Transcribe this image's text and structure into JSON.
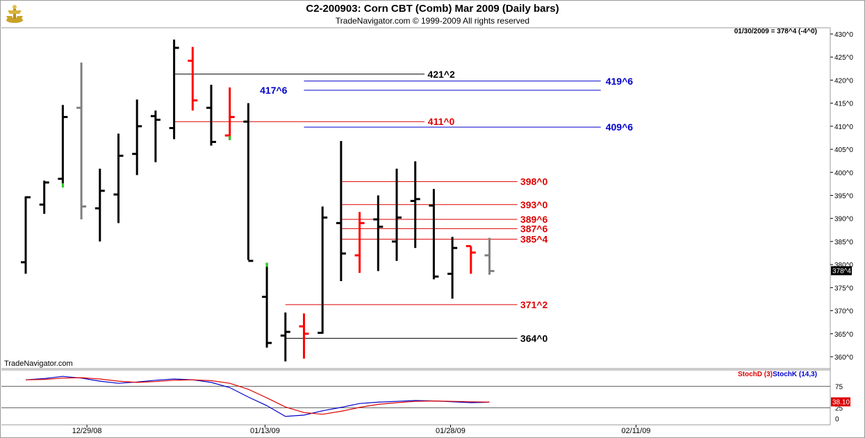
{
  "header": {
    "title": "C2-200903:  Corn CBT (Comb) Mar 2009  (Daily bars)",
    "subtitle": "TradeNavigator.com © 1999-2009 All rights reserved"
  },
  "quote": "01/30/2009 = 378^4 (-4^0)",
  "last_price_label": "378^4",
  "watermark": "TradeNavigator.com",
  "colors": {
    "up": "#000000",
    "down": "#ff0000",
    "gray": "#808080",
    "green": "#22cc22",
    "blue": "#0000cc",
    "red": "#dd0000"
  },
  "chart_data": [
    {
      "type": "ohlc",
      "title": "Corn CBT (Comb) Mar 2009",
      "y_axis": {
        "min": 357,
        "max": 431,
        "ticks": [
          "430^0",
          "425^0",
          "420^0",
          "415^0",
          "410^0",
          "405^0",
          "400^0",
          "395^0",
          "390^0",
          "385^0",
          "380^0",
          "375^0",
          "370^0",
          "365^0",
          "360^0"
        ]
      },
      "x_labels": [
        {
          "label": "12/29/08",
          "bar": 3.3
        },
        {
          "label": "01/13/09",
          "bar": 12.9
        },
        {
          "label": "01/28/09",
          "bar": 22.9
        },
        {
          "label": "02/11/09",
          "bar": 32.9
        }
      ],
      "bars": [
        {
          "o": 380.5,
          "h": 394.8,
          "l": 378.0,
          "c": 394.6,
          "color": "up"
        },
        {
          "o": 393.0,
          "h": 398.2,
          "l": 391.0,
          "c": 397.8,
          "color": "up"
        },
        {
          "o": 398.6,
          "h": 414.6,
          "l": 397.6,
          "c": 412.0,
          "color": "up",
          "mark": "green"
        },
        {
          "o": 414.0,
          "h": 423.8,
          "l": 389.8,
          "c": 392.6,
          "color": "gray"
        },
        {
          "o": 392.2,
          "h": 400.8,
          "l": 385.0,
          "c": 396.0,
          "color": "up"
        },
        {
          "o": 395.2,
          "h": 408.4,
          "l": 389.0,
          "c": 403.6,
          "color": "up"
        },
        {
          "o": 404.0,
          "h": 415.8,
          "l": 399.4,
          "c": 410.0,
          "color": "up"
        },
        {
          "o": 412.2,
          "h": 413.4,
          "l": 402.2,
          "c": 411.4,
          "color": "up"
        },
        {
          "o": 409.6,
          "h": 428.8,
          "l": 407.2,
          "c": 427.0,
          "color": "up"
        },
        {
          "o": 424.2,
          "h": 427.2,
          "l": 413.4,
          "c": 415.6,
          "color": "down"
        },
        {
          "o": 414.0,
          "h": 419.0,
          "l": 405.8,
          "c": 406.6,
          "color": "up"
        },
        {
          "o": 408.0,
          "h": 418.4,
          "l": 407.0,
          "c": 412.0,
          "color": "down",
          "mark": "green"
        },
        {
          "o": 411.0,
          "h": 415.0,
          "l": 381.0,
          "c": 380.8,
          "color": "up"
        },
        {
          "o": 373.0,
          "h": 380.4,
          "l": 362.0,
          "c": 363.0,
          "color": "up",
          "mark": "green"
        },
        {
          "o": 364.6,
          "h": 369.6,
          "l": 359.0,
          "c": 365.4,
          "color": "up"
        },
        {
          "o": 366.6,
          "h": 369.4,
          "l": 359.6,
          "c": 365.0,
          "color": "down"
        },
        {
          "o": 365.2,
          "h": 392.6,
          "l": 365.0,
          "c": 390.2,
          "color": "up"
        },
        {
          "o": 389.0,
          "h": 406.8,
          "l": 376.4,
          "c": 382.4,
          "color": "up"
        },
        {
          "o": 382.0,
          "h": 391.4,
          "l": 378.2,
          "c": 389.0,
          "color": "down"
        },
        {
          "o": 389.8,
          "h": 395.0,
          "l": 378.6,
          "c": 388.2,
          "color": "up"
        },
        {
          "o": 385.0,
          "h": 400.8,
          "l": 380.8,
          "c": 390.2,
          "color": "up"
        },
        {
          "o": 393.8,
          "h": 402.4,
          "l": 383.6,
          "c": 394.2,
          "color": "up"
        },
        {
          "o": 392.8,
          "h": 396.4,
          "l": 376.8,
          "c": 377.4,
          "color": "up"
        },
        {
          "o": 378.0,
          "h": 386.0,
          "l": 372.6,
          "c": 383.6,
          "color": "up"
        },
        {
          "o": 384.0,
          "h": 384.0,
          "l": 378.0,
          "c": 382.6,
          "color": "down"
        },
        {
          "o": 382.0,
          "h": 385.8,
          "l": 377.8,
          "c": 378.6,
          "color": "gray"
        }
      ],
      "levels": [
        {
          "label": "421^2",
          "value": 421.3,
          "from_bar": 8.0,
          "to_bar": 21.5,
          "color": "#000000",
          "label_bar": 22.4
        },
        {
          "label": "419^6",
          "value": 419.8,
          "from_bar": 15.0,
          "to_bar": 31.0,
          "color": "#0000cc",
          "label_bar": 32.0
        },
        {
          "label": "417^6",
          "value": 417.8,
          "from_bar": 15.0,
          "to_bar": 31.0,
          "color": "#0000cc",
          "label_bar": 14.1,
          "label_left": true
        },
        {
          "label": "411^0",
          "value": 411.0,
          "from_bar": 8.0,
          "to_bar": 21.5,
          "color": "#dd0000",
          "label_bar": 22.4
        },
        {
          "label": "409^6",
          "value": 409.8,
          "from_bar": 15.0,
          "to_bar": 31.0,
          "color": "#0000cc",
          "label_bar": 32.0
        },
        {
          "label": "398^0",
          "value": 398.0,
          "from_bar": 17.0,
          "to_bar": 26.5,
          "color": "#dd0000",
          "label_bar": 27.4
        },
        {
          "label": "393^0",
          "value": 393.0,
          "from_bar": 17.0,
          "to_bar": 26.5,
          "color": "#dd0000",
          "label_bar": 27.4
        },
        {
          "label": "389^6",
          "value": 389.8,
          "from_bar": 17.0,
          "to_bar": 26.5,
          "color": "#dd0000",
          "label_bar": 27.4
        },
        {
          "label": "387^6",
          "value": 387.8,
          "from_bar": 17.0,
          "to_bar": 26.5,
          "color": "#dd0000",
          "label_bar": 27.4
        },
        {
          "label": "385^4",
          "value": 385.5,
          "from_bar": 17.0,
          "to_bar": 26.5,
          "color": "#dd0000",
          "label_bar": 27.4
        },
        {
          "label": "371^2",
          "value": 371.3,
          "from_bar": 14.0,
          "to_bar": 26.5,
          "color": "#dd0000",
          "label_bar": 27.4
        },
        {
          "label": "364^0",
          "value": 364.0,
          "from_bar": 14.0,
          "to_bar": 26.5,
          "color": "#000000",
          "label_bar": 27.4
        }
      ]
    },
    {
      "type": "line",
      "title": "Stochastics",
      "legend": [
        {
          "name": "StochD (3)",
          "color": "#dd0000"
        },
        {
          "name": "StochK (14,3)",
          "color": "#0000cc"
        }
      ],
      "y_ticks": [
        "75",
        "25",
        "0"
      ],
      "hlines": [
        75,
        25
      ],
      "y_range": [
        0,
        100
      ],
      "last_value_label": "38.10",
      "series": [
        {
          "name": "StochK (14,3)",
          "color": "#0000cc",
          "values": [
            90,
            93,
            98,
            94,
            87,
            82,
            85,
            89,
            92,
            90,
            84,
            72,
            50,
            30,
            5,
            8,
            18,
            26,
            35,
            38,
            40,
            42,
            41,
            39,
            37,
            38
          ]
        },
        {
          "name": "StochD (3)",
          "color": "#dd0000",
          "values": [
            90,
            91,
            94,
            95,
            92,
            87,
            84,
            86,
            89,
            90,
            88,
            82,
            68,
            48,
            27,
            14,
            10,
            17,
            26,
            33,
            37,
            40,
            41,
            40,
            39,
            38
          ]
        }
      ]
    }
  ]
}
